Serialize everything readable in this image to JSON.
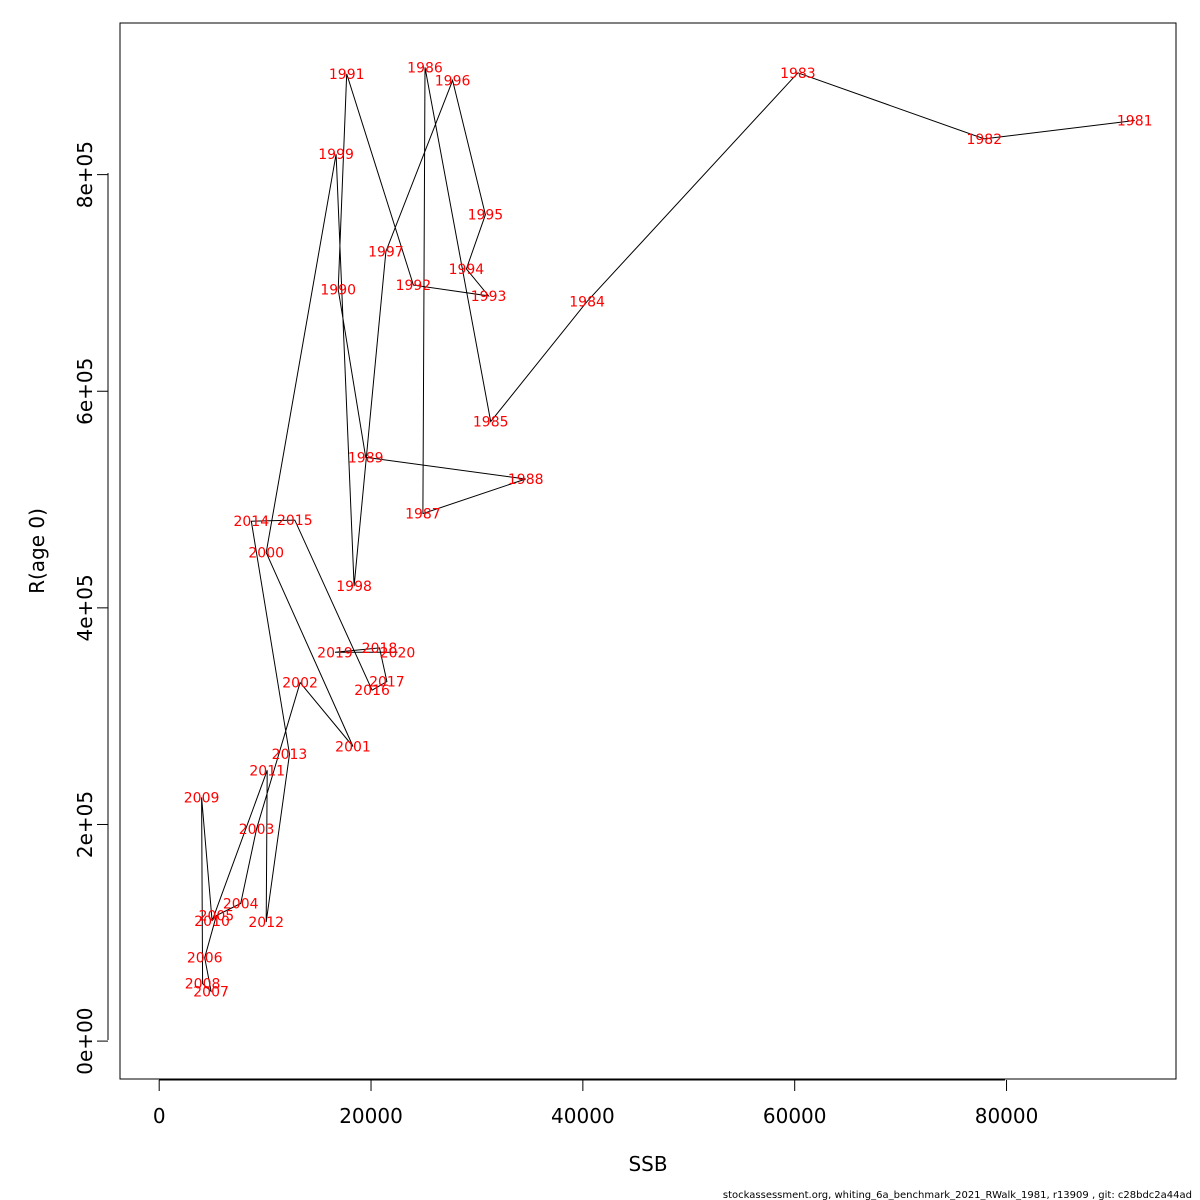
{
  "chart_data": {
    "type": "line",
    "xlabel": "SSB",
    "ylabel": "R(age 0)",
    "xlim": [
      -3700,
      96000
    ],
    "ylim": [
      -35000,
      940000
    ],
    "xticks": [
      {
        "value": 0,
        "label": "0"
      },
      {
        "value": 20000,
        "label": "20000"
      },
      {
        "value": 40000,
        "label": "40000"
      },
      {
        "value": 60000,
        "label": "60000"
      },
      {
        "value": 80000,
        "label": "80000"
      }
    ],
    "yticks": [
      {
        "value": 0,
        "label": "0e+00"
      },
      {
        "value": 200000,
        "label": "2e+05"
      },
      {
        "value": 400000,
        "label": "4e+05"
      },
      {
        "value": 600000,
        "label": "6e+05"
      },
      {
        "value": 800000,
        "label": "8e+05"
      }
    ],
    "grid": false,
    "line_color": "#000000",
    "label_color": "#ff0000",
    "points": [
      {
        "label": "1981",
        "x": 92100,
        "y": 850000
      },
      {
        "label": "1982",
        "x": 77900,
        "y": 833000
      },
      {
        "label": "1983",
        "x": 60300,
        "y": 894000
      },
      {
        "label": "1984",
        "x": 40400,
        "y": 683000
      },
      {
        "label": "1985",
        "x": 31300,
        "y": 572000
      },
      {
        "label": "1986",
        "x": 25100,
        "y": 899000
      },
      {
        "label": "1987",
        "x": 24900,
        "y": 487000
      },
      {
        "label": "1988",
        "x": 34600,
        "y": 519000
      },
      {
        "label": "1989",
        "x": 19500,
        "y": 539000
      },
      {
        "label": "1990",
        "x": 16900,
        "y": 694000
      },
      {
        "label": "1991",
        "x": 17700,
        "y": 893000
      },
      {
        "label": "1992",
        "x": 24000,
        "y": 698000
      },
      {
        "label": "1993",
        "x": 31100,
        "y": 688000
      },
      {
        "label": "1994",
        "x": 29000,
        "y": 713000
      },
      {
        "label": "1995",
        "x": 30800,
        "y": 763000
      },
      {
        "label": "1996",
        "x": 27700,
        "y": 887000
      },
      {
        "label": "1997",
        "x": 21400,
        "y": 729000
      },
      {
        "label": "1998",
        "x": 18400,
        "y": 420000
      },
      {
        "label": "1999",
        "x": 16700,
        "y": 819000
      },
      {
        "label": "2000",
        "x": 10100,
        "y": 451000
      },
      {
        "label": "2001",
        "x": 18300,
        "y": 272000
      },
      {
        "label": "2002",
        "x": 13300,
        "y": 331000
      },
      {
        "label": "2003",
        "x": 9200,
        "y": 196000
      },
      {
        "label": "2004",
        "x": 7700,
        "y": 127000
      },
      {
        "label": "2005",
        "x": 5400,
        "y": 116000
      },
      {
        "label": "2006",
        "x": 4300,
        "y": 77000
      },
      {
        "label": "2007",
        "x": 4900,
        "y": 46000
      },
      {
        "label": "2008",
        "x": 4100,
        "y": 53000
      },
      {
        "label": "2009",
        "x": 4000,
        "y": 225000
      },
      {
        "label": "2010",
        "x": 5000,
        "y": 111000
      },
      {
        "label": "2011",
        "x": 10200,
        "y": 250000
      },
      {
        "label": "2012",
        "x": 10100,
        "y": 110000
      },
      {
        "label": "2013",
        "x": 12300,
        "y": 265000
      },
      {
        "label": "2014",
        "x": 8700,
        "y": 480000
      },
      {
        "label": "2015",
        "x": 12800,
        "y": 481000
      },
      {
        "label": "2016",
        "x": 20100,
        "y": 324000
      },
      {
        "label": "2017",
        "x": 21500,
        "y": 332000
      },
      {
        "label": "2018",
        "x": 20800,
        "y": 363000
      },
      {
        "label": "2019",
        "x": 16600,
        "y": 359000
      },
      {
        "label": "2020",
        "x": 22500,
        "y": 359000
      }
    ]
  },
  "footer": "stockassessment.org, whiting_6a_benchmark_2021_RWalk_1981, r13909 , git: c28bdc2a44ad"
}
